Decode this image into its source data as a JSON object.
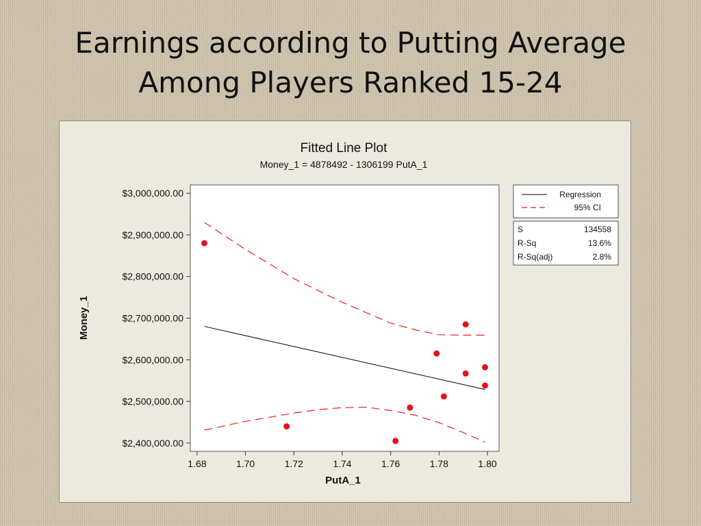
{
  "slide": {
    "title_line1": "Earnings according to Putting Average",
    "title_line2": "Among Players Ranked 15-24"
  },
  "chart_data": {
    "type": "scatter",
    "title": "Fitted Line Plot",
    "subtitle": "Money_1 =  4878492 - 1306199 PutA_1",
    "xlabel": "PutA_1",
    "ylabel": "Money_1",
    "xlim": [
      1.68,
      1.8
    ],
    "ylim": [
      2400000,
      3000000
    ],
    "x_ticks": [
      1.68,
      1.7,
      1.72,
      1.74,
      1.76,
      1.78,
      1.8
    ],
    "x_tick_labels": [
      "1.68",
      "1.70",
      "1.72",
      "1.74",
      "1.76",
      "1.78",
      "1.80"
    ],
    "y_ticks": [
      2400000,
      2500000,
      2600000,
      2700000,
      2800000,
      2900000,
      3000000
    ],
    "y_tick_labels": [
      "$2,400,000.00",
      "$2,500,000.00",
      "$2,600,000.00",
      "$2,700,000.00",
      "$2,800,000.00",
      "$2,900,000.00",
      "$3,000,000.00"
    ],
    "points": [
      {
        "x": 1.683,
        "y": 2880000
      },
      {
        "x": 1.717,
        "y": 2440000
      },
      {
        "x": 1.762,
        "y": 2405000
      },
      {
        "x": 1.768,
        "y": 2485000
      },
      {
        "x": 1.779,
        "y": 2615000
      },
      {
        "x": 1.782,
        "y": 2512000
      },
      {
        "x": 1.791,
        "y": 2685000
      },
      {
        "x": 1.791,
        "y": 2567000
      },
      {
        "x": 1.799,
        "y": 2582000
      },
      {
        "x": 1.799,
        "y": 2538000
      }
    ],
    "regression": {
      "intercept": 4878492,
      "slope": -1306199,
      "x_range": [
        1.683,
        1.799
      ]
    },
    "ci_upper": [
      [
        1.683,
        2930000
      ],
      [
        1.7,
        2865000
      ],
      [
        1.72,
        2795000
      ],
      [
        1.74,
        2738000
      ],
      [
        1.76,
        2688000
      ],
      [
        1.77,
        2672000
      ],
      [
        1.78,
        2660000
      ],
      [
        1.79,
        2659000
      ],
      [
        1.799,
        2659000
      ]
    ],
    "ci_lower": [
      [
        1.683,
        2431000
      ],
      [
        1.7,
        2452000
      ],
      [
        1.72,
        2472000
      ],
      [
        1.73,
        2480000
      ],
      [
        1.74,
        2485000
      ],
      [
        1.75,
        2486000
      ],
      [
        1.76,
        2478000
      ],
      [
        1.77,
        2467000
      ],
      [
        1.78,
        2449000
      ],
      [
        1.79,
        2425000
      ],
      [
        1.799,
        2402000
      ]
    ],
    "legend": {
      "position": "right",
      "items": [
        {
          "label": "Regression",
          "style": "solid",
          "color": "#000000"
        },
        {
          "label": "95% CI",
          "style": "dashed",
          "color": "#e8201c"
        }
      ]
    },
    "stats": [
      {
        "label": "S",
        "value": "134558"
      },
      {
        "label": "R-Sq",
        "value": "13.6%"
      },
      {
        "label": "R-Sq(adj)",
        "value": "2.8%"
      }
    ],
    "point_color": "#e8101a",
    "ci_color": "#e8201c",
    "line_color": "#000000"
  }
}
